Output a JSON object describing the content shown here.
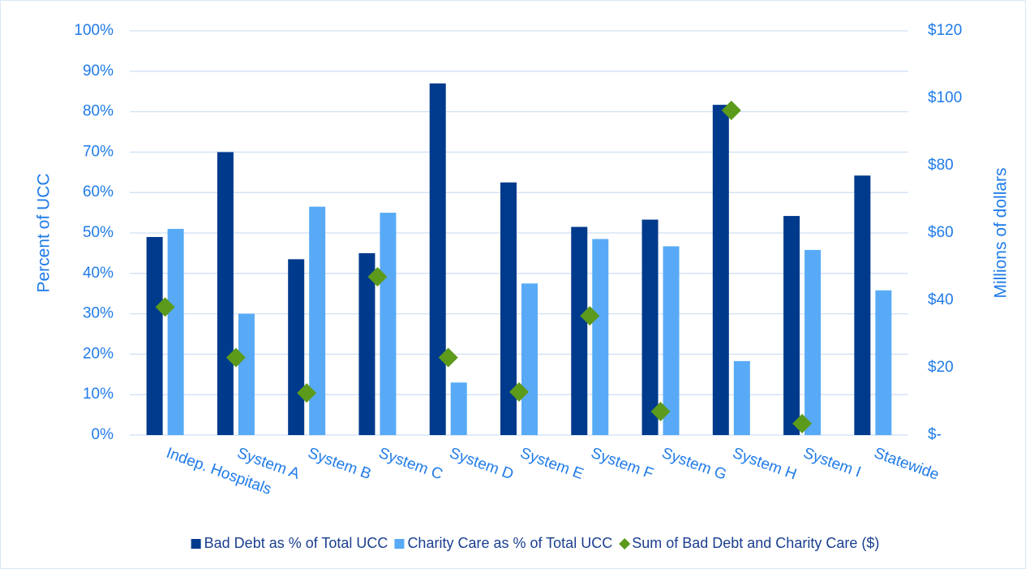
{
  "chart_data": {
    "type": "bar",
    "categories": [
      "Indep. Hospitals",
      "System A",
      "System B",
      "System C",
      "System D",
      "System E",
      "System F",
      "System G",
      "System H",
      "System I",
      "Statewide"
    ],
    "series": [
      {
        "name": "Bad Debt as % of Total UCC",
        "type": "bar",
        "color": "#003a8c",
        "values": [
          49,
          70,
          43.5,
          45,
          87,
          62.5,
          51.5,
          53.3,
          81.7,
          54.2,
          64.2
        ]
      },
      {
        "name": "Charity Care as % of Total UCC",
        "type": "bar",
        "color": "#58aaf6",
        "values": [
          51,
          30,
          56.5,
          55,
          13,
          37.5,
          48.5,
          46.7,
          18.3,
          45.8,
          35.8
        ]
      },
      {
        "name": "Sum of Bad Debt and Charity Care ($)",
        "type": "scatter",
        "marker": "diamond",
        "axis": "y2",
        "color": "#5c9a1b",
        "values": [
          38,
          23,
          12.5,
          47,
          23,
          12.8,
          35.4,
          7,
          96.4,
          3.4,
          null
        ]
      }
    ],
    "y_label": "Percent of UCC",
    "y2_label": "Millions of dollars",
    "ylim": [
      0,
      100
    ],
    "yticks": [
      {
        "value": 0,
        "label": "0%"
      },
      {
        "value": 10,
        "label": "10%"
      },
      {
        "value": 20,
        "label": "20%"
      },
      {
        "value": 30,
        "label": "30%"
      },
      {
        "value": 40,
        "label": "40%"
      },
      {
        "value": 50,
        "label": "50%"
      },
      {
        "value": 60,
        "label": "60%"
      },
      {
        "value": 70,
        "label": "70%"
      },
      {
        "value": 80,
        "label": "80%"
      },
      {
        "value": 90,
        "label": "90%"
      },
      {
        "value": 100,
        "label": "100%"
      }
    ],
    "y2lim": [
      0,
      120
    ],
    "y2ticks": [
      {
        "value": 0,
        "label": "$-"
      },
      {
        "value": 20,
        "label": "$20"
      },
      {
        "value": 40,
        "label": "$40"
      },
      {
        "value": 60,
        "label": "$60"
      },
      {
        "value": 80,
        "label": "$80"
      },
      {
        "value": 100,
        "label": "$100"
      },
      {
        "value": 120,
        "label": "$120"
      }
    ],
    "grid": true,
    "legend": "bottom"
  }
}
